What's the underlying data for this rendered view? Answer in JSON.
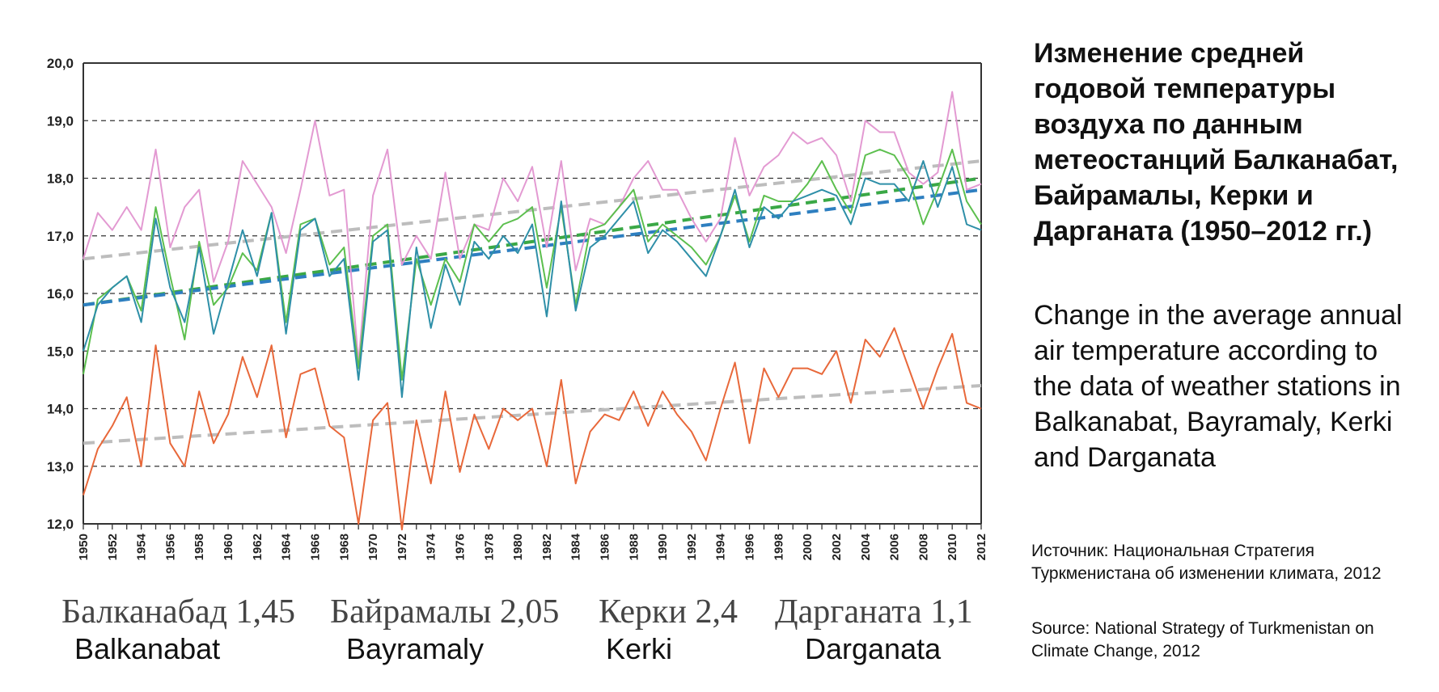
{
  "chart_data": {
    "type": "line",
    "title": "",
    "xlabel": "",
    "ylabel": "",
    "x": [
      1950,
      1951,
      1952,
      1953,
      1954,
      1955,
      1956,
      1957,
      1958,
      1959,
      1960,
      1961,
      1962,
      1963,
      1964,
      1965,
      1966,
      1967,
      1968,
      1969,
      1970,
      1971,
      1972,
      1973,
      1974,
      1975,
      1976,
      1977,
      1978,
      1979,
      1980,
      1981,
      1982,
      1983,
      1984,
      1985,
      1986,
      1987,
      1988,
      1989,
      1990,
      1991,
      1992,
      1993,
      1994,
      1995,
      1996,
      1997,
      1998,
      1999,
      2000,
      2001,
      2002,
      2003,
      2004,
      2005,
      2006,
      2007,
      2008,
      2009,
      2010,
      2011,
      2012
    ],
    "xticks": [
      "1950",
      "1952",
      "1954",
      "1956",
      "1958",
      "1960",
      "1962",
      "1964",
      "1966",
      "1968",
      "1970",
      "1972",
      "1974",
      "1976",
      "1978",
      "1980",
      "1982",
      "1984",
      "1986",
      "1988",
      "1990",
      "1992",
      "1994",
      "1996",
      "1998",
      "2000",
      "2002",
      "2004",
      "2006",
      "2008",
      "2010",
      "2012"
    ],
    "yticks": [
      "12,0",
      "13,0",
      "14,0",
      "15,0",
      "16,0",
      "17,0",
      "18,0",
      "19,0",
      "20,0"
    ],
    "ylim": [
      12,
      20
    ],
    "grid": "horizontal dashed",
    "series": [
      {
        "color": "#e39ad2",
        "values": [
          16.6,
          17.4,
          17.1,
          17.5,
          17.1,
          18.5,
          16.8,
          17.5,
          17.8,
          16.2,
          16.9,
          18.3,
          17.9,
          17.5,
          16.7,
          17.8,
          19.0,
          17.7,
          17.8,
          14.8,
          17.7,
          18.5,
          16.5,
          17.0,
          16.6,
          18.1,
          16.6,
          17.2,
          17.1,
          18.0,
          17.6,
          18.2,
          16.8,
          18.3,
          16.4,
          17.3,
          17.2,
          17.5,
          18.0,
          18.3,
          17.8,
          17.8,
          17.3,
          16.9,
          17.3,
          18.7,
          17.7,
          18.2,
          18.4,
          18.8,
          18.6,
          18.7,
          18.4,
          17.6,
          19.0,
          18.8,
          18.8,
          18.1,
          17.9,
          18.1,
          19.5,
          17.8,
          17.9
        ]
      },
      {
        "color": "#5cbf4e",
        "values": [
          14.6,
          15.9,
          16.1,
          16.3,
          15.7,
          17.5,
          16.3,
          15.2,
          16.9,
          15.8,
          16.1,
          16.7,
          16.4,
          17.4,
          15.5,
          17.2,
          17.3,
          16.5,
          16.8,
          14.7,
          17.0,
          17.2,
          14.5,
          16.6,
          15.8,
          16.6,
          16.2,
          17.2,
          16.9,
          17.2,
          17.3,
          17.5,
          16.1,
          17.5,
          15.8,
          17.1,
          17.2,
          17.5,
          17.8,
          16.9,
          17.2,
          17.0,
          16.8,
          16.5,
          17.0,
          17.7,
          16.9,
          17.7,
          17.6,
          17.6,
          17.9,
          18.3,
          17.8,
          17.4,
          18.4,
          18.5,
          18.4,
          18.0,
          17.2,
          17.8,
          18.5,
          17.6,
          17.2
        ]
      },
      {
        "color": "#2e8fa8",
        "values": [
          15.0,
          15.8,
          16.1,
          16.3,
          15.5,
          17.3,
          16.1,
          15.5,
          16.8,
          15.3,
          16.2,
          17.1,
          16.3,
          17.4,
          15.3,
          17.1,
          17.3,
          16.3,
          16.6,
          14.5,
          16.9,
          17.1,
          14.2,
          16.8,
          15.4,
          16.5,
          15.8,
          16.9,
          16.6,
          17.0,
          16.7,
          17.2,
          15.6,
          17.6,
          15.7,
          16.8,
          17.0,
          17.3,
          17.6,
          16.7,
          17.1,
          16.9,
          16.6,
          16.3,
          17.0,
          17.8,
          16.8,
          17.5,
          17.3,
          17.6,
          17.7,
          17.8,
          17.7,
          17.2,
          18.0,
          17.9,
          17.9,
          17.6,
          18.3,
          17.5,
          18.2,
          17.2,
          17.1
        ]
      },
      {
        "color": "#e8683a",
        "values": [
          12.5,
          13.3,
          13.7,
          14.2,
          13.0,
          15.1,
          13.4,
          13.0,
          14.3,
          13.4,
          13.9,
          14.9,
          14.2,
          15.1,
          13.5,
          14.6,
          14.7,
          13.7,
          13.5,
          12.0,
          13.8,
          14.1,
          11.9,
          13.8,
          12.7,
          14.3,
          12.9,
          13.9,
          13.3,
          14.0,
          13.8,
          14.0,
          13.0,
          14.5,
          12.7,
          13.6,
          13.9,
          13.8,
          14.3,
          13.7,
          14.3,
          13.9,
          13.6,
          13.1,
          14.0,
          14.8,
          13.4,
          14.7,
          14.2,
          14.7,
          14.7,
          14.6,
          15.0,
          14.1,
          15.2,
          14.9,
          15.4,
          14.7,
          14.0,
          14.7,
          15.3,
          14.1,
          14.0
        ]
      }
    ],
    "trends": [
      {
        "color": "#bdbdbd",
        "from": [
          1950,
          16.6
        ],
        "to": [
          2012,
          18.3
        ]
      },
      {
        "color": "#3aa846",
        "from": [
          1950,
          15.8
        ],
        "to": [
          2012,
          18.0
        ]
      },
      {
        "color": "#2e7fc0",
        "from": [
          1950,
          15.8
        ],
        "to": [
          2012,
          17.8
        ]
      },
      {
        "color": "#bdbdbd",
        "from": [
          1950,
          13.4
        ],
        "to": [
          2012,
          14.4
        ]
      }
    ],
    "station_labels": [
      {
        "ru": "Балканабад 1,45",
        "en": "Balkanabat"
      },
      {
        "ru": "Байрамалы 2,05",
        "en": "Bayramaly"
      },
      {
        "ru": "Керки 2,4",
        "en": "Kerki"
      },
      {
        "ru": "Дарганата 1,1",
        "en": "Darganata"
      }
    ]
  },
  "text": {
    "title_ru": "Изменение средней годовой температуры воздуха по данным метеостанций Балканабат, Байрамалы, Керки и Дарганата (1950–2012 гг.)",
    "title_en": "Change in the average annual air temperature according to the data of weather stations in Balkanabat, Bayramaly, Kerki and Darganata",
    "source_ru": "Источник: Национальная Стратегия Туркменистана об изменении климата, 2012",
    "source_en": "Source: National Strategy of Turkmenistan on Climate Change, 2012"
  }
}
